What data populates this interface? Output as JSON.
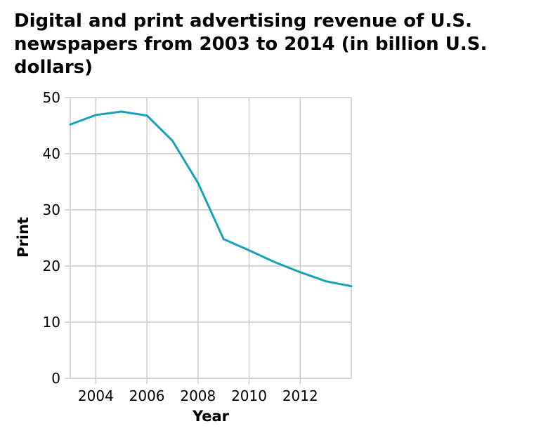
{
  "chart_data": {
    "type": "line",
    "title": "Digital and print advertising revenue of U.S. newspapers from 2003 to 2014 (in billion U.S. dollars)",
    "xlabel": "Year",
    "ylabel": "Print",
    "xlim": [
      2003,
      2014
    ],
    "ylim": [
      0,
      50
    ],
    "x_ticks": [
      2004,
      2006,
      2008,
      2010,
      2012
    ],
    "y_ticks": [
      0,
      10,
      20,
      30,
      40,
      50
    ],
    "grid": true,
    "series": [
      {
        "color": "#17a2b8",
        "x": [
          2003,
          2004,
          2005,
          2006,
          2007,
          2008,
          2009,
          2010,
          2011,
          2012,
          2013,
          2014
        ],
        "values": [
          45.2,
          46.9,
          47.5,
          46.8,
          42.3,
          34.8,
          24.8,
          22.8,
          20.7,
          18.9,
          17.3,
          16.4
        ]
      }
    ]
  }
}
